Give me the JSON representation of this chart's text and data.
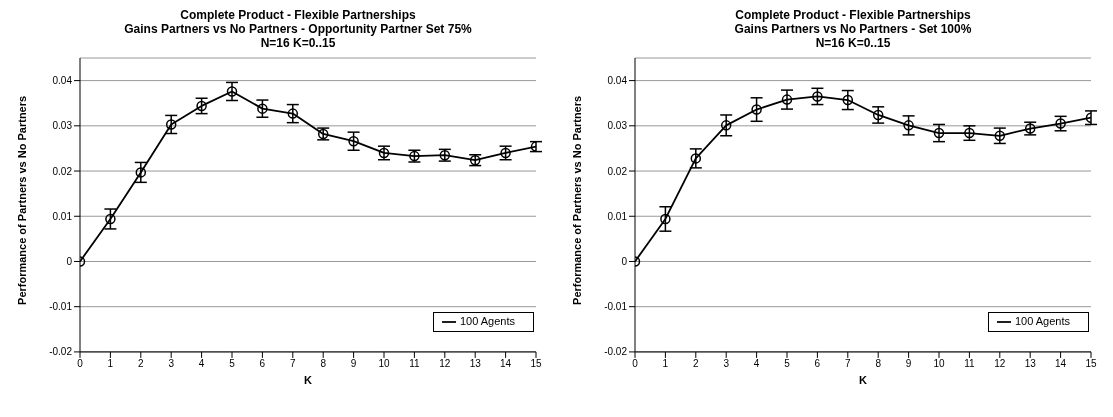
{
  "chart_data": [
    {
      "type": "line",
      "title": "Complete Product - Flexible Partnerships\nGains Partners vs No Partners - Opportunity Partner Set 75%\nN=16 K=0..15",
      "xlabel": "K",
      "ylabel": "Performance of Partners vs No Partners",
      "x": [
        0,
        1,
        2,
        3,
        4,
        5,
        6,
        7,
        8,
        9,
        10,
        11,
        12,
        13,
        14,
        15
      ],
      "xlim": [
        0,
        15
      ],
      "xticks": [
        0,
        1,
        2,
        3,
        4,
        5,
        6,
        7,
        8,
        9,
        10,
        11,
        12,
        13,
        14,
        15
      ],
      "ylim": [
        -0.02,
        0.045
      ],
      "yticks": [
        -0.02,
        -0.01,
        0,
        0.01,
        0.02,
        0.03,
        0.04
      ],
      "grid": "y",
      "legend": "bottom right",
      "marker": "circle",
      "line_style": "solid",
      "series": [
        {
          "name": "100 Agents",
          "color": "#000000",
          "values": [
            0,
            0.0094,
            0.0197,
            0.0303,
            0.0344,
            0.0376,
            0.0338,
            0.0327,
            0.0282,
            0.0266,
            0.024,
            0.0233,
            0.0235,
            0.0224,
            0.024,
            0.0254
          ],
          "errors": [
            null,
            0.0022,
            0.0022,
            0.002,
            0.0017,
            0.002,
            0.0019,
            0.002,
            0.0013,
            0.002,
            0.0015,
            0.0013,
            0.0013,
            0.0012,
            0.0015,
            0.0011
          ]
        }
      ]
    },
    {
      "type": "line",
      "title": "Complete Product - Flexible Partnerships\nGains Partners vs No Partners - Set 100%\nN=16 K=0..15",
      "xlabel": "K",
      "ylabel": "Performance of Partners vs No Partners",
      "x": [
        0,
        1,
        2,
        3,
        4,
        5,
        6,
        7,
        8,
        9,
        10,
        11,
        12,
        13,
        14,
        15
      ],
      "xlim": [
        0,
        15
      ],
      "xticks": [
        0,
        1,
        2,
        3,
        4,
        5,
        6,
        7,
        8,
        9,
        10,
        11,
        12,
        13,
        14,
        15
      ],
      "ylim": [
        -0.02,
        0.045
      ],
      "yticks": [
        -0.02,
        -0.01,
        0,
        0.01,
        0.02,
        0.03,
        0.04
      ],
      "grid": "y",
      "legend": "bottom right",
      "marker": "circle",
      "line_style": "solid",
      "series": [
        {
          "name": "100 Agents",
          "color": "#000000",
          "values": [
            0,
            0.0094,
            0.0228,
            0.0301,
            0.0336,
            0.0358,
            0.0365,
            0.0357,
            0.0324,
            0.0301,
            0.0284,
            0.0284,
            0.0278,
            0.0294,
            0.0305,
            0.0318
          ],
          "errors": [
            null,
            0.0027,
            0.0021,
            0.0023,
            0.0026,
            0.0021,
            0.0018,
            0.0021,
            0.0018,
            0.0021,
            0.0019,
            0.0016,
            0.0017,
            0.0014,
            0.0016,
            0.0015
          ]
        }
      ]
    }
  ]
}
